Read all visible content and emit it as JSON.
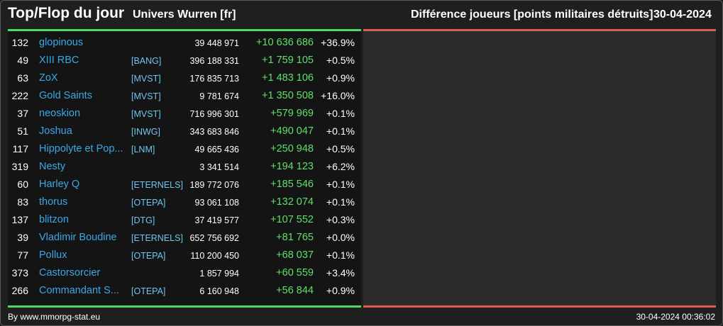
{
  "header": {
    "title": "Top/Flop du jour",
    "universe": "Univers Wurren [fr]",
    "metric": "Différence joueurs [points militaires détruits]",
    "date": "30-04-2024"
  },
  "colors": {
    "top_accent": "#4cd964",
    "flop_accent": "#e05a5a",
    "player_link": "#3aa8e6",
    "alliance_tag": "#6fc6f0",
    "gain": "#5ee06a"
  },
  "top_list": [
    {
      "rank": "132",
      "player": "glopinous",
      "alliance": "",
      "score": "39 448 971",
      "diff": "+10 636 686",
      "pct": "+36.9%"
    },
    {
      "rank": "49",
      "player": "XIII RBC",
      "alliance": "[BANG]",
      "score": "396 188 331",
      "diff": "+1 759 105",
      "pct": "+0.5%"
    },
    {
      "rank": "63",
      "player": "ZoX",
      "alliance": "[MVST]",
      "score": "176 835 713",
      "diff": "+1 483 106",
      "pct": "+0.9%"
    },
    {
      "rank": "222",
      "player": "Gold Saints",
      "alliance": "[MVST]",
      "score": "9 781 674",
      "diff": "+1 350 508",
      "pct": "+16.0%"
    },
    {
      "rank": "37",
      "player": "neoskion",
      "alliance": "[MVST]",
      "score": "716 996 301",
      "diff": "+579 969",
      "pct": "+0.1%"
    },
    {
      "rank": "51",
      "player": "Joshua",
      "alliance": "[INWG]",
      "score": "343 683 846",
      "diff": "+490 047",
      "pct": "+0.1%"
    },
    {
      "rank": "117",
      "player": "Hippolyte et Pop...",
      "alliance": "[LNM]",
      "score": "49 665 436",
      "diff": "+250 948",
      "pct": "+0.5%"
    },
    {
      "rank": "319",
      "player": "Nesty",
      "alliance": "",
      "score": "3 341 514",
      "diff": "+194 123",
      "pct": "+6.2%"
    },
    {
      "rank": "60",
      "player": "Harley Q",
      "alliance": "[ETERNELS]",
      "score": "189 772 076",
      "diff": "+185 546",
      "pct": "+0.1%"
    },
    {
      "rank": "83",
      "player": "thorus",
      "alliance": "[OTEPA]",
      "score": "93 061 108",
      "diff": "+132 074",
      "pct": "+0.1%"
    },
    {
      "rank": "137",
      "player": "blitzon",
      "alliance": "[DTG]",
      "score": "37 419 577",
      "diff": "+107 552",
      "pct": "+0.3%"
    },
    {
      "rank": "39",
      "player": "Vladimir Boudine",
      "alliance": "[ETERNELS]",
      "score": "652 756 692",
      "diff": "+81 765",
      "pct": "+0.0%"
    },
    {
      "rank": "77",
      "player": "Pollux",
      "alliance": "[OTEPA]",
      "score": "110 200 450",
      "diff": "+68 037",
      "pct": "+0.1%"
    },
    {
      "rank": "373",
      "player": "Castorsorcier",
      "alliance": "",
      "score": "1 857 994",
      "diff": "+60 559",
      "pct": "+3.4%"
    },
    {
      "rank": "266",
      "player": "Commandant S...",
      "alliance": "[OTEPA]",
      "score": "6 160 948",
      "diff": "+56 844",
      "pct": "+0.9%"
    }
  ],
  "footer": {
    "credit": "By www.mmorpg-stat.eu",
    "timestamp": "30-04-2024 00:36:02"
  }
}
